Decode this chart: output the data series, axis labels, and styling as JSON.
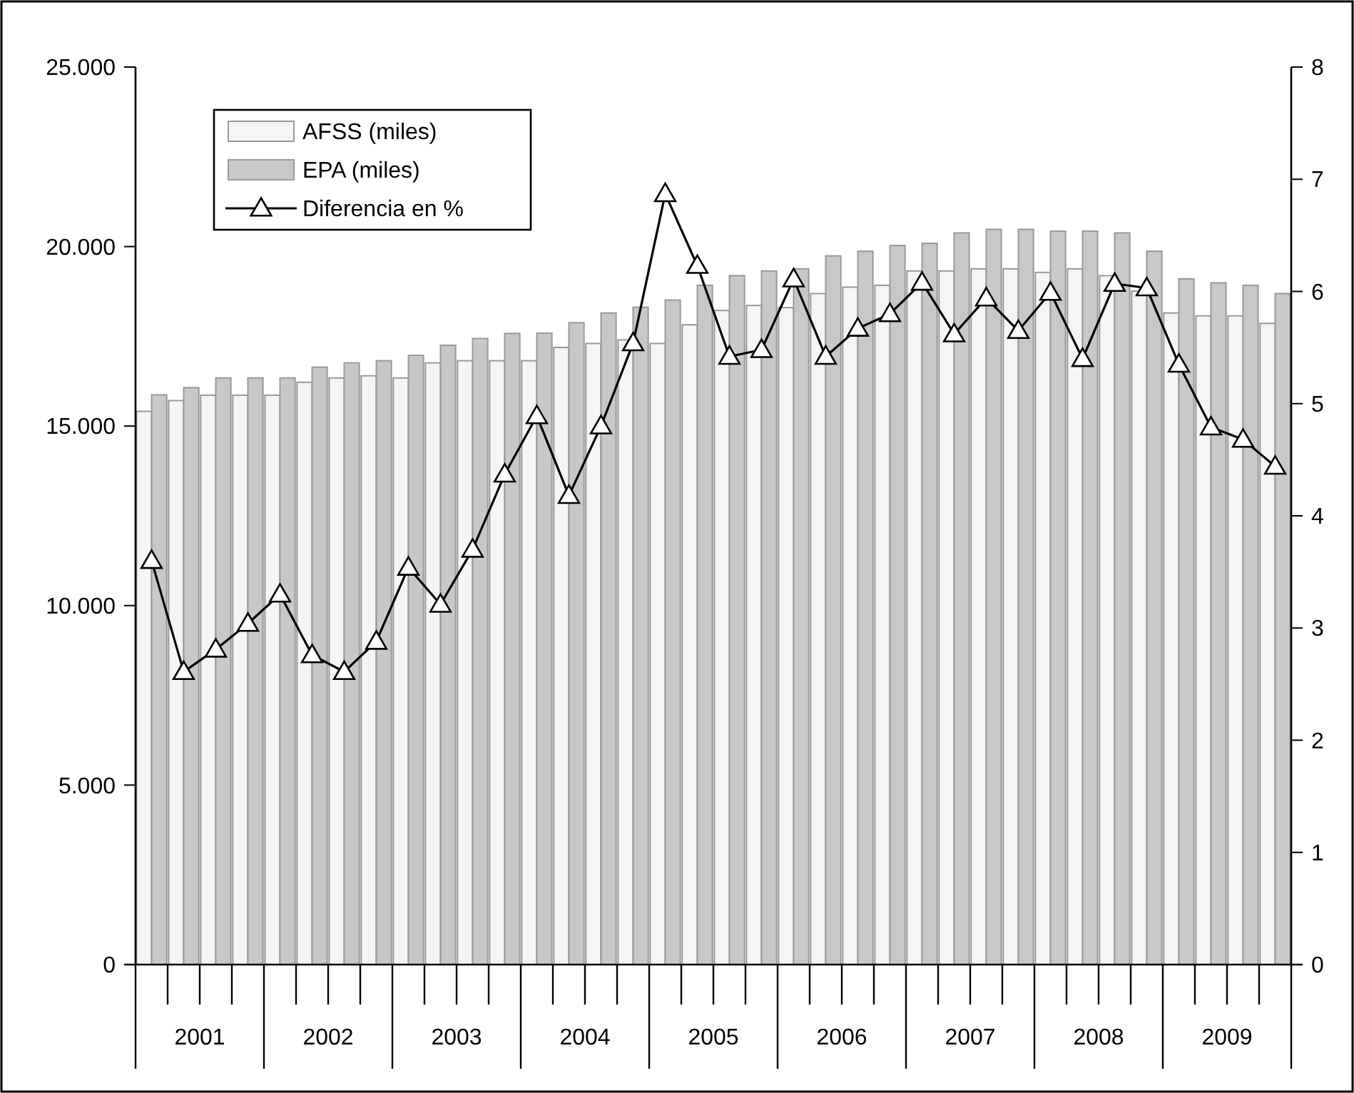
{
  "chart_data": {
    "type": "bar",
    "categories": [
      null,
      null,
      null,
      null,
      null,
      null,
      null,
      null,
      null,
      null,
      null,
      null,
      null,
      null,
      null,
      null,
      null,
      null,
      null,
      null,
      null,
      null,
      null,
      null,
      null,
      null,
      null,
      null,
      null,
      null,
      null,
      null,
      null,
      null,
      null,
      null
    ],
    "annotations": [
      "2001",
      "2002",
      "2003",
      "2004",
      "2005",
      "2006",
      "2007",
      "2008",
      "2009"
    ],
    "series": [
      {
        "name": "AFSS (miles)",
        "color": "#f5f5f5",
        "values": [
          15410,
          15710,
          15860,
          15860,
          15860,
          16220,
          16340,
          16400,
          16340,
          16760,
          16820,
          16820,
          16820,
          17190,
          17300,
          17400,
          17300,
          17820,
          18220,
          18360,
          18300,
          18690,
          18870,
          18920,
          19320,
          19320,
          19380,
          19380,
          19280,
          19380,
          19190,
          18760,
          18150,
          18070,
          18070,
          17860
        ]
      },
      {
        "name": "EPA (miles)",
        "color": "#c8c8c8",
        "values": [
          15870,
          16070,
          16340,
          16340,
          16340,
          16640,
          16760,
          16820,
          16970,
          17250,
          17440,
          17580,
          17590,
          17880,
          18150,
          18310,
          18510,
          18920,
          19190,
          19320,
          19380,
          19740,
          19870,
          20030,
          20090,
          20380,
          20480,
          20480,
          20430,
          20430,
          20380,
          19870,
          19100,
          18990,
          18920,
          18690
        ]
      },
      {
        "name": "Diferencia en %",
        "type": "line",
        "axis": "y2",
        "color": "#000000",
        "marker": "triangle",
        "values": [
          3.6,
          2.61,
          2.81,
          3.04,
          3.3,
          2.76,
          2.61,
          2.88,
          3.54,
          3.21,
          3.7,
          4.37,
          4.89,
          4.18,
          4.8,
          5.54,
          6.87,
          6.23,
          5.42,
          5.48,
          6.11,
          5.42,
          5.67,
          5.8,
          6.08,
          5.62,
          5.94,
          5.65,
          5.99,
          5.4,
          6.07,
          6.03,
          5.35,
          4.79,
          4.68,
          4.44
        ]
      }
    ],
    "ylim": [
      0,
      25000
    ],
    "yticks": [
      0,
      {
        "value": 5000,
        "label": "5.000"
      },
      {
        "value": 10000,
        "label": "10.000"
      },
      {
        "value": 15000,
        "label": "15.000"
      },
      {
        "value": 20000,
        "label": "20.000"
      },
      {
        "value": 25000,
        "label": "25.000"
      }
    ],
    "y2lim": [
      0,
      8
    ],
    "y2ticks": [
      0,
      1,
      2,
      3,
      4,
      5,
      6,
      7,
      8
    ],
    "legend": "top left",
    "grid": false
  }
}
